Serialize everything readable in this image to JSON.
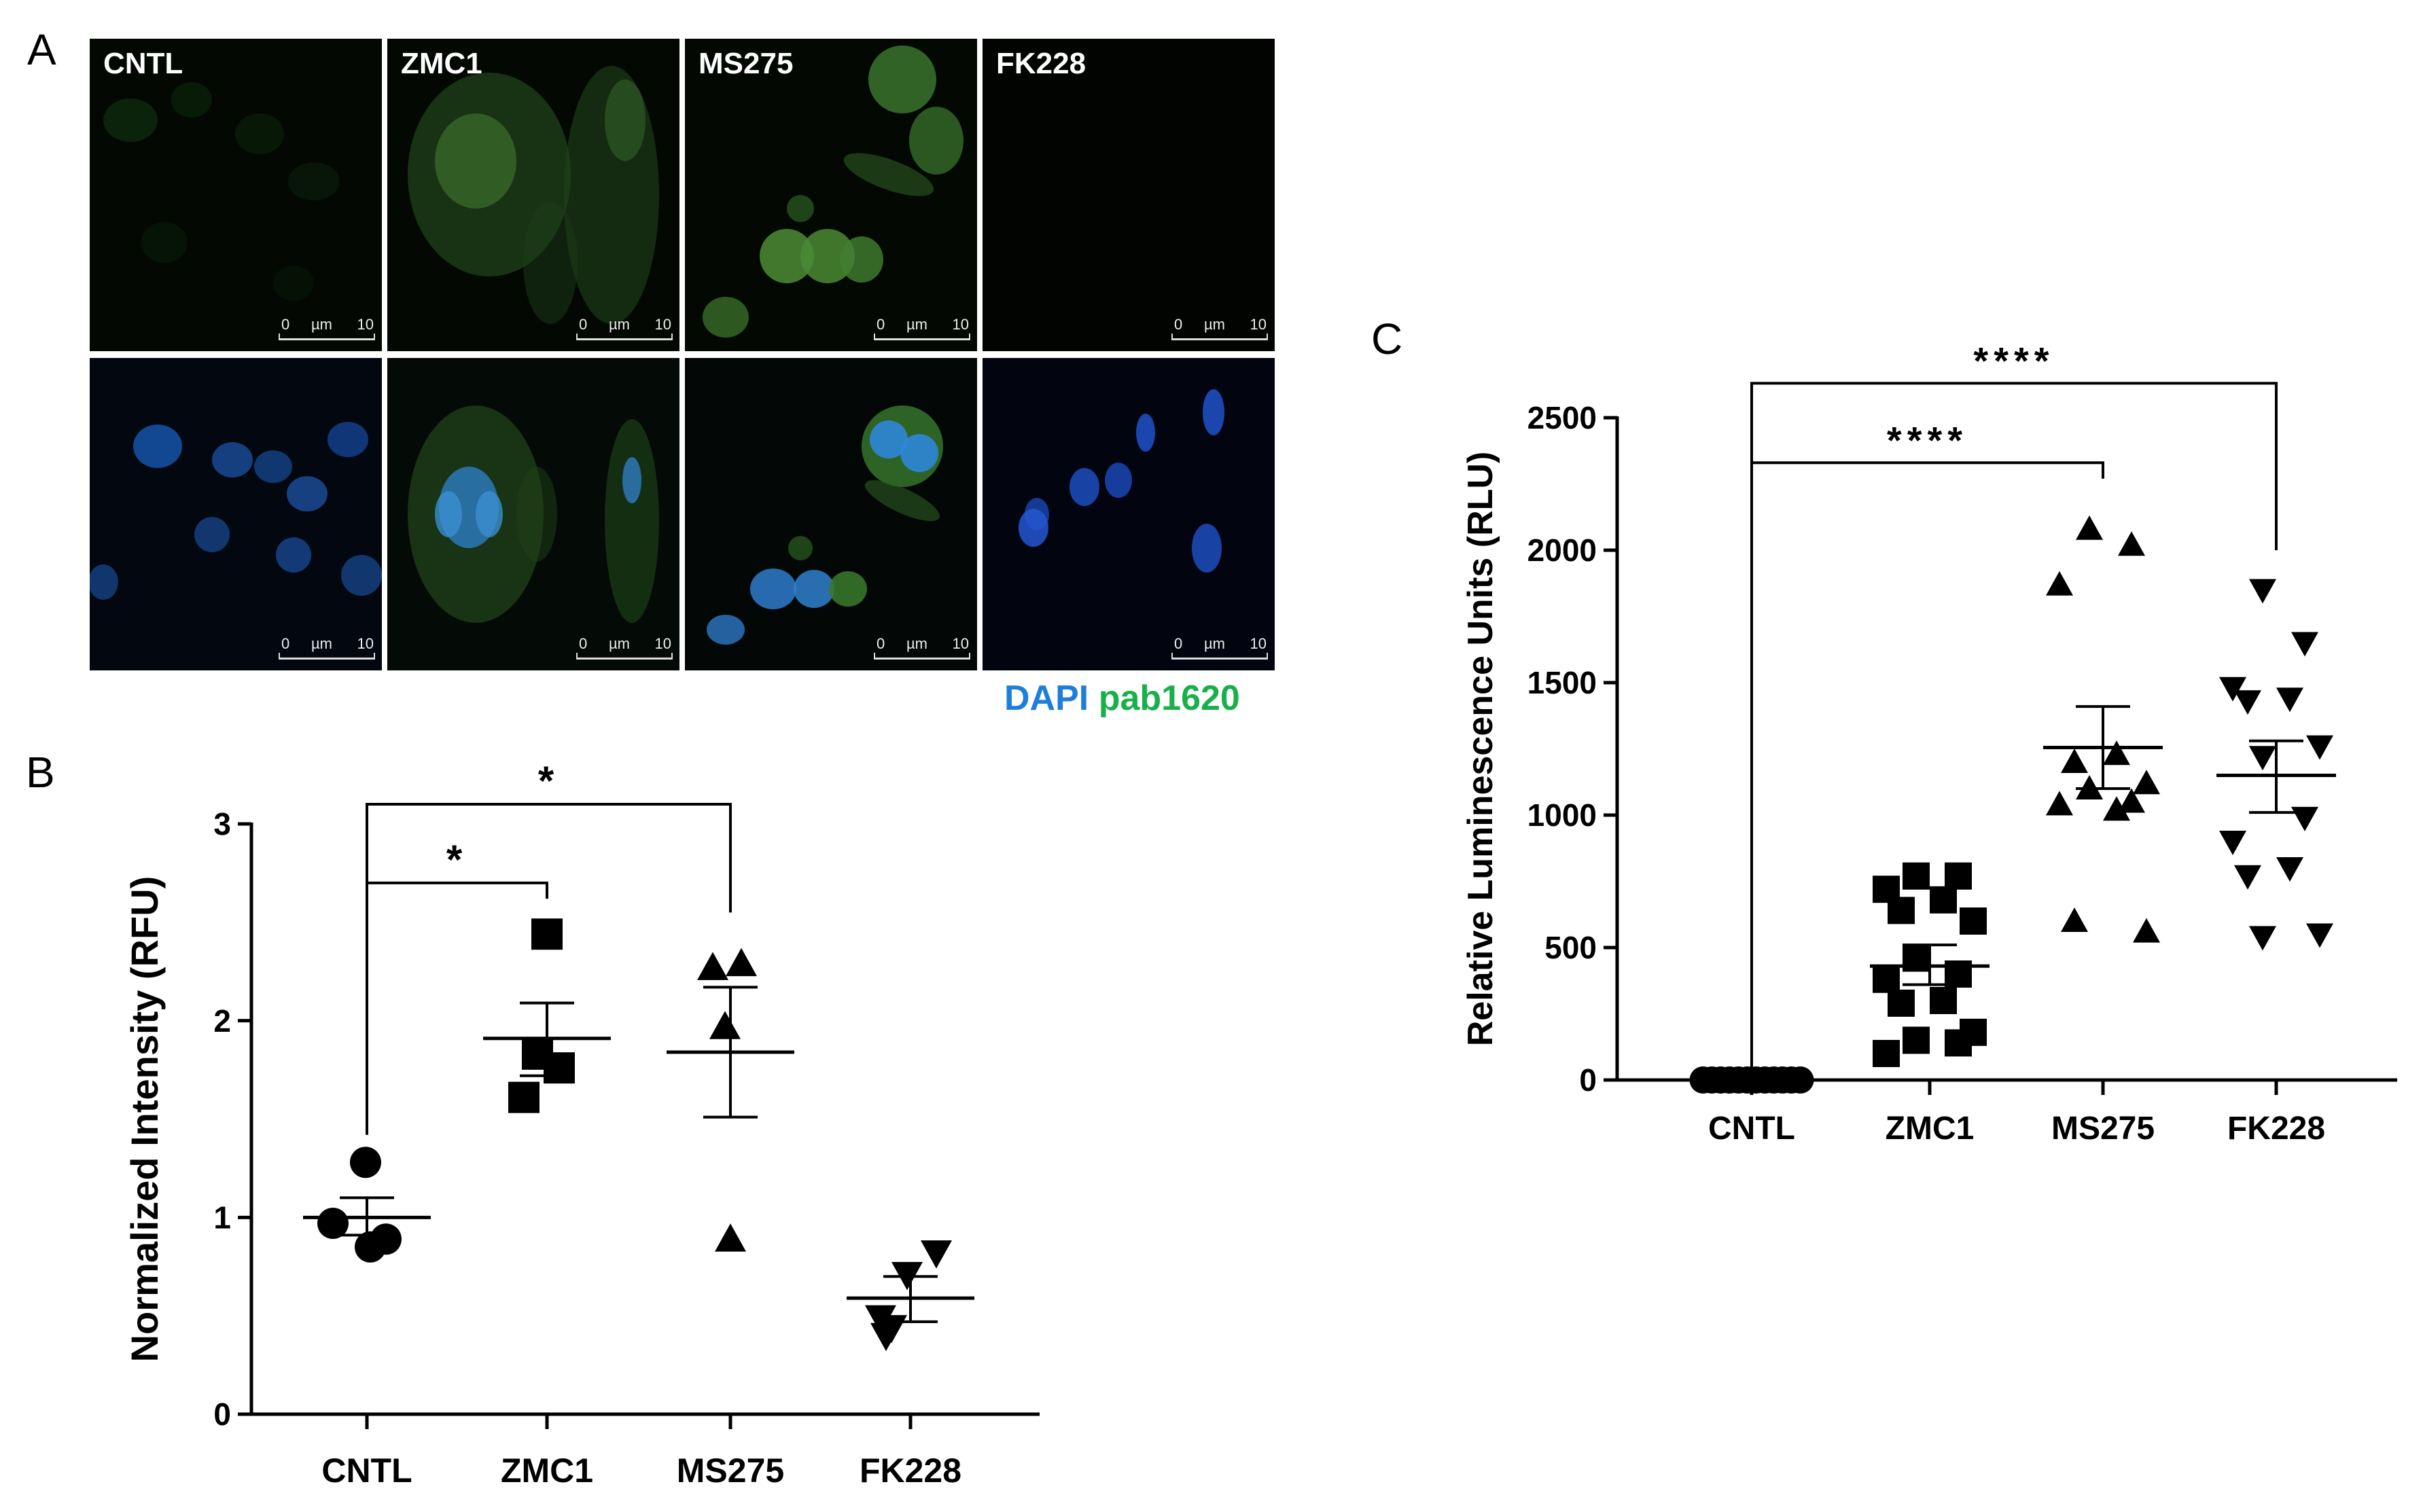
{
  "panels": {
    "a": {
      "letter": "A",
      "tiles": [
        {
          "label": "CNTL",
          "channel": "pab1620",
          "row": 0
        },
        {
          "label": "ZMC1",
          "channel": "pab1620",
          "row": 0
        },
        {
          "label": "MS275",
          "channel": "pab1620",
          "row": 0
        },
        {
          "label": "FK228",
          "channel": "pab1620",
          "row": 0
        },
        {
          "label": "",
          "channel": "merge",
          "row": 1
        },
        {
          "label": "",
          "channel": "merge",
          "row": 1
        },
        {
          "label": "",
          "channel": "merge",
          "row": 1
        },
        {
          "label": "",
          "channel": "merge",
          "row": 1
        }
      ],
      "scalebar": {
        "start": "0",
        "unit": "µm",
        "end": "10"
      },
      "legend": {
        "dapi": "DAPI",
        "pab": "pab1620",
        "dapi_color": "#1e7fd8",
        "pab_color": "#18b04a"
      }
    },
    "b": {
      "letter": "B"
    },
    "c": {
      "letter": "C"
    }
  },
  "chart_data": [
    {
      "id": "B",
      "type": "scatter",
      "ylabel": "Normalized Intensity (RFU)",
      "xlabel": "",
      "categories": [
        "CNTL",
        "ZMC1",
        "MS275",
        "FK228"
      ],
      "ylim": [
        0,
        3
      ],
      "yticks": [
        0,
        1,
        2,
        3
      ],
      "groups": [
        {
          "name": "CNTL",
          "marker": "circle",
          "points": [
            1.28,
            0.97,
            0.85,
            0.89
          ],
          "mean": 1.0,
          "sem_upper": 1.1,
          "sem_lower": 0.91
        },
        {
          "name": "ZMC1",
          "marker": "square",
          "points": [
            2.44,
            1.83,
            1.76,
            1.61
          ],
          "mean": 1.91,
          "sem_upper": 2.09,
          "sem_lower": 1.72
        },
        {
          "name": "MS275",
          "marker": "triangle-up",
          "points": [
            2.27,
            2.29,
            1.97,
            0.89
          ],
          "mean": 1.84,
          "sem_upper": 2.17,
          "sem_lower": 1.51
        },
        {
          "name": "FK228",
          "marker": "triangle-down",
          "points": [
            0.71,
            0.82,
            0.49,
            0.4,
            0.44
          ],
          "mean": 0.59,
          "sem_upper": 0.7,
          "sem_lower": 0.47
        }
      ],
      "comparisons": [
        {
          "from": "CNTL",
          "to": "ZMC1",
          "label": "*",
          "level": 2.7
        },
        {
          "from": "CNTL",
          "to": "MS275",
          "label": "*",
          "level": 3.1
        }
      ]
    },
    {
      "id": "C",
      "type": "scatter",
      "ylabel": "Relative Luminescence Units (RLU)",
      "xlabel": "",
      "categories": [
        "CNTL",
        "ZMC1",
        "MS275",
        "FK228"
      ],
      "ylim": [
        0,
        2500
      ],
      "yticks": [
        0,
        500,
        1000,
        1500,
        2000,
        2500
      ],
      "groups": [
        {
          "name": "CNTL",
          "marker": "circle",
          "points": [
            0,
            0,
            0,
            0,
            0,
            0,
            0,
            0,
            0,
            0,
            0,
            0
          ],
          "mean": 0,
          "sem_upper": 0,
          "sem_lower": 0
        },
        {
          "name": "ZMC1",
          "marker": "square",
          "points": [
            770,
            770,
            720,
            680,
            640,
            600,
            460,
            400,
            380,
            300,
            290,
            180,
            150,
            140,
            100
          ],
          "mean": 430,
          "sem_upper": 510,
          "sem_lower": 360
        },
        {
          "name": "MS275",
          "marker": "triangle-up",
          "points": [
            2080,
            2020,
            1870,
            1230,
            1200,
            1120,
            1100,
            1050,
            1040,
            1020,
            600,
            560
          ],
          "mean": 1255,
          "sem_upper": 1410,
          "sem_lower": 1100
        },
        {
          "name": "FK228",
          "marker": "triangle-down",
          "points": [
            1850,
            1650,
            1480,
            1440,
            1430,
            1260,
            1220,
            990,
            900,
            800,
            770,
            550,
            540
          ],
          "mean": 1150,
          "sem_upper": 1280,
          "sem_lower": 1010
        }
      ],
      "comparisons": [
        {
          "from": "CNTL",
          "to": "MS275",
          "label": "****",
          "level": 2330
        },
        {
          "from": "CNTL",
          "to": "FK228",
          "label": "****",
          "level": 2630
        }
      ]
    }
  ]
}
